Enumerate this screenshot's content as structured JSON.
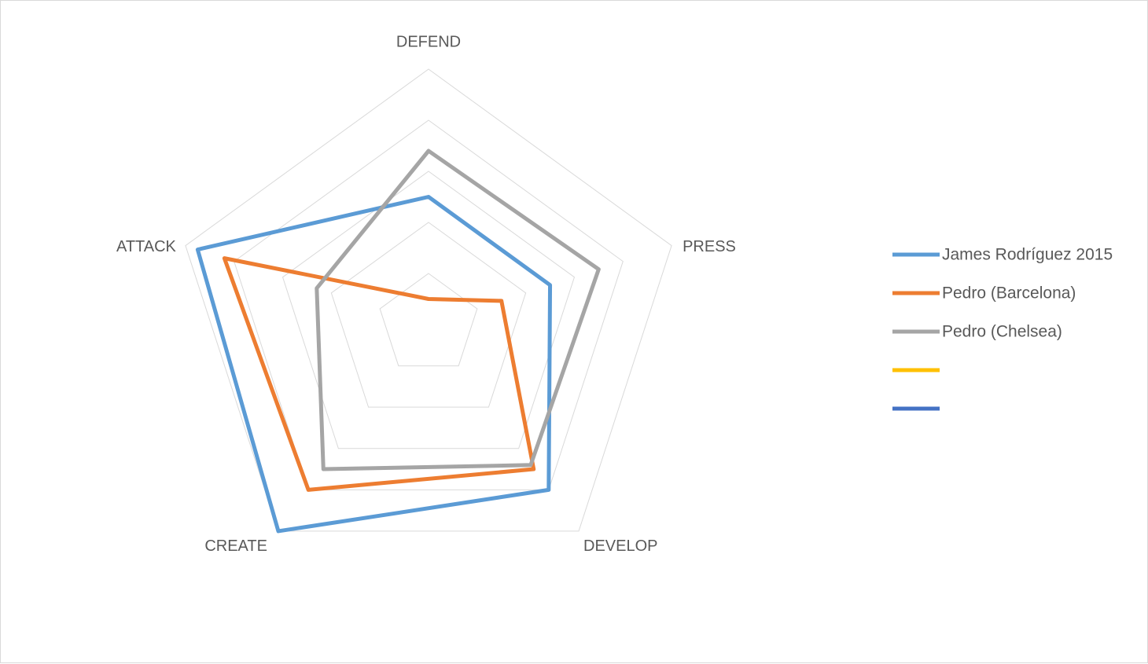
{
  "chart_data": {
    "type": "radar",
    "title": "",
    "axes": [
      "DEFEND",
      "PRESS",
      "DEVELOP",
      "CREATE",
      "ATTACK"
    ],
    "rlim": [
      0,
      5
    ],
    "grid": true,
    "legend_position": "right",
    "series": [
      {
        "name": "James Rodríguez 2015",
        "color": "#5B9BD5",
        "values": [
          2.5,
          2.5,
          4.0,
          5.0,
          4.75
        ]
      },
      {
        "name": "Pedro (Barcelona)",
        "color": "#ED7D31",
        "values": [
          0.5,
          1.5,
          3.5,
          4.0,
          4.2
        ]
      },
      {
        "name": "Pedro (Chelsea)",
        "color": "#A5A5A5",
        "values": [
          3.4,
          3.5,
          3.4,
          3.5,
          2.3
        ]
      },
      {
        "name": "",
        "color": "#FFC000",
        "values": []
      },
      {
        "name": "",
        "color": "#4472C4",
        "values": []
      }
    ]
  }
}
